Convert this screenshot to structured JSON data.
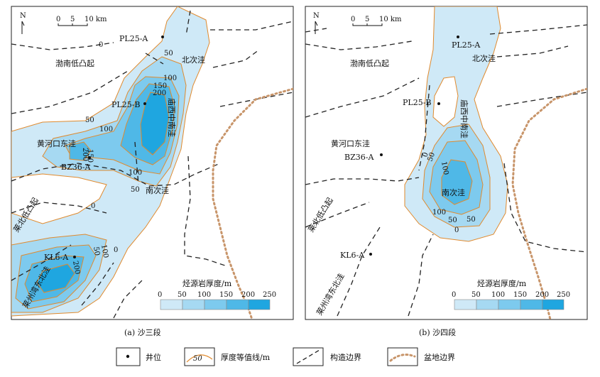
{
  "panels": [
    {
      "caption": "(a) 沙三段",
      "north": "N",
      "scale": {
        "ticks": [
          "0",
          "5",
          "10 km"
        ]
      },
      "wells": [
        "PL25-A",
        "PL25-B",
        "BZ36-A",
        "KL6-A"
      ],
      "regions": [
        "渤南低凸起",
        "北次洼",
        "庙西中南洼",
        "黄河口东洼",
        "南次洼",
        "莱北低凸起",
        "莱州湾东北洼"
      ],
      "contours": [
        "0",
        "50",
        "100",
        "150",
        "200",
        "50",
        "100",
        "150",
        "200",
        "0",
        "100",
        "50",
        "0",
        "50",
        "100",
        "200"
      ],
      "legend_title": "烃源岩厚度/m",
      "legend_ticks": [
        "0",
        "50",
        "100",
        "150",
        "200",
        "250"
      ]
    },
    {
      "caption": "(b) 沙四段",
      "north": "N",
      "scale": {
        "ticks": [
          "0",
          "5",
          "10 km"
        ]
      },
      "wells": [
        "PL25-A",
        "PL25-B",
        "BZ36-A",
        "KL6-A"
      ],
      "regions": [
        "渤南低凸起",
        "北次洼",
        "庙西中南洼",
        "黄河口东洼",
        "南次洼",
        "莱北低凸起",
        "莱州湾东北洼"
      ],
      "contours": [
        "0",
        "50",
        "100",
        "100",
        "50",
        "0",
        "50"
      ],
      "legend_title": "烃源岩厚度/m",
      "legend_ticks": [
        "0",
        "50",
        "100",
        "150",
        "200",
        "250"
      ]
    }
  ],
  "legend_bottom": {
    "well": "井位",
    "contour_sample": "50",
    "contour": "厚度等值线/m",
    "boundary": "构造边界",
    "basin": "盆地边界"
  },
  "colors": {
    "c0": "#cfe9f7",
    "c50": "#a6d9f2",
    "c100": "#7dcaee",
    "c150": "#4fb8e7",
    "c200": "#1fa6e0",
    "contour": "#e08a2e",
    "basin": "#c8956a"
  }
}
